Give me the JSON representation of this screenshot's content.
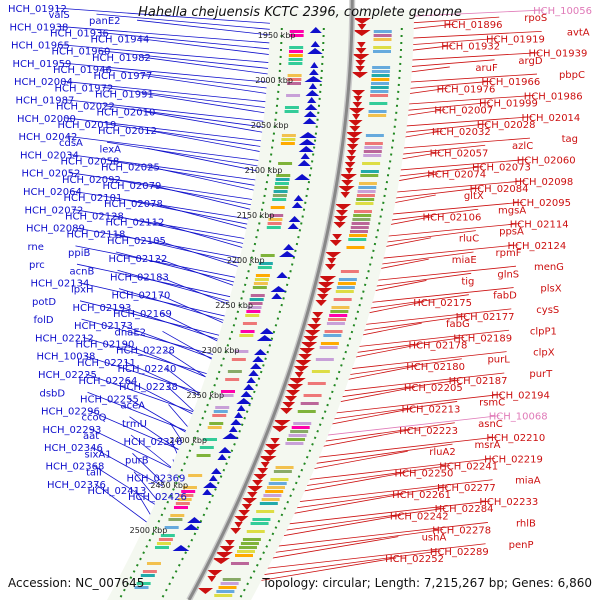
{
  "title": "Hahella chejuensis KCTC 2396, complete genome",
  "footer": {
    "accession": "Accession: NC_007645",
    "stats": "Topology: circular; Length: 7,215,267 bp; Genes: 6,860"
  },
  "ticks": [
    "1950 kbp",
    "2000 kbp",
    "2050 kbp",
    "2100 kbp",
    "2150 kbp",
    "2200 kbp",
    "2250 kbp",
    "2300 kbp",
    "2350 kbp",
    "2400 kbp",
    "2450 kbp",
    "2500 kbp"
  ],
  "left_labels": [
    "HCH_01912",
    "valS",
    "panE2",
    "HCH_01938",
    "HCH_01936",
    "HCH_01944",
    "HCH_01965",
    "HCH_01960",
    "HCH_01982",
    "HCH_01959",
    "HCH_01946",
    "HCH_01977",
    "HCH_02004",
    "HCH_01972",
    "HCH_01991",
    "HCH_01987",
    "HCH_02022",
    "HCH_02010",
    "HCH_02000",
    "HCH_02019",
    "HCH_02012",
    "HCH_02042",
    "cdsA",
    "lexA",
    "HCH_02034",
    "HCH_02058",
    "HCH_02025",
    "HCH_02052",
    "HCH_02092",
    "HCH_02079",
    "HCH_02064",
    "HCH_02101",
    "HCH_02078",
    "HCH_02072",
    "HCH_02128",
    "HCH_02112",
    "HCH_02089",
    "HCH_02118",
    "HCH_02105",
    "rne",
    "ppiB",
    "HCH_02122",
    "prc",
    "acnB",
    "HCH_02183",
    "HCH_02134",
    "lpxH",
    "HCH_02170",
    "potD",
    "HCH_02193",
    "HCH_02169",
    "folD",
    "HCH_02173",
    "dnaE2",
    "HCH_02212",
    "HCH_02190",
    "HCH_02228",
    "HCH_10038",
    "HCH_02211",
    "HCH_02240",
    "HCH_02225",
    "HCH_02264",
    "HCH_02238",
    "dsbD",
    "HCH_02255",
    "aceA",
    "HCH_02296",
    "ccoQ",
    "trmU",
    "HCH_02293",
    "aat",
    "HCH_02316",
    "HCH_02346",
    "sixA1",
    "purB",
    "HCH_02368",
    "talI",
    "HCH_02369",
    "HCH_02376",
    "HCH_02413",
    "HCH_02426"
  ],
  "right_labels": [
    "HCH_10056",
    "rpoS",
    "HCH_01896",
    "avtA",
    "HCH_01919",
    "HCH_01932",
    "HCH_01939",
    "argD",
    "aruF",
    "pbpC",
    "HCH_01966",
    "HCH_01976",
    "HCH_01986",
    "HCH_01999",
    "HCH_02007",
    "HCH_02014",
    "HCH_02028",
    "HCH_02032",
    "tag",
    "azlC",
    "HCH_02057",
    "HCH_02060",
    "HCH_02073",
    "HCH_02074",
    "HCH_02098",
    "HCH_02084",
    "gltX",
    "HCH_02095",
    "mgsA",
    "HCH_02106",
    "HCH_02114",
    "ppsA",
    "rluC",
    "HCH_02124",
    "rpmF",
    "miaE",
    "menG",
    "glnS",
    "tig",
    "plsX",
    "fabD",
    "HCH_02175",
    "cysS",
    "HCH_02177",
    "fabG",
    "clpP1",
    "HCH_02189",
    "HCH_02178",
    "clpX",
    "purL",
    "HCH_02180",
    "purT",
    "HCH_02187",
    "HCH_02205",
    "HCH_02194",
    "rsmC",
    "HCH_02213",
    "HCH_10068",
    "asnC",
    "HCH_02223",
    "HCH_02210",
    "msrA",
    "rluA2",
    "HCH_02219",
    "HCH_02241",
    "HCH_02250",
    "miaA",
    "HCH_02277",
    "HCH_02261",
    "HCH_02233",
    "HCH_02284",
    "HCH_02242",
    "rhlB",
    "HCH_02278",
    "ushA",
    "penP",
    "HCH_02289",
    "HCH_02252"
  ],
  "colors": {
    "forward": "#1010cc",
    "reverse": "#cc1010",
    "pink_label": "#e07ab8",
    "backbone": "#888888",
    "gc_dots": "#228822"
  }
}
